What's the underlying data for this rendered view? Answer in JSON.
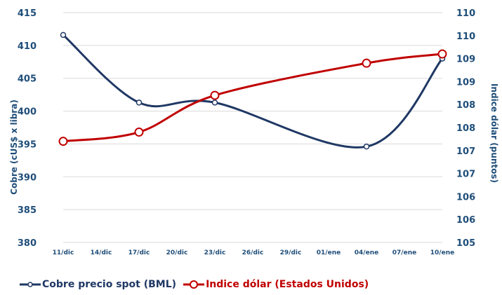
{
  "colors": {
    "cobre": "#1f3864",
    "dolar": "#c00000",
    "axis_text": "#1f4e79",
    "grid": "#d9d9d9"
  },
  "chart_data": {
    "type": "line",
    "x": [
      "11/dic",
      "17/dic",
      "23/dic",
      "04/ene",
      "10/ene"
    ],
    "xticks": [
      "11/dic",
      "14/dic",
      "17/dic",
      "20/dic",
      "23/dic",
      "26/dic",
      "29/dic",
      "01/ene",
      "04/ene",
      "07/ene",
      "10/ene"
    ],
    "ylabel": "Cobre (cUS$ x libra)",
    "y2label": "Indice dólar (puntos)",
    "ylim": [
      380,
      415
    ],
    "yticks": [
      "380",
      "385",
      "390",
      "395",
      "400",
      "405",
      "410",
      "415"
    ],
    "y2ticks": [
      "105",
      "106",
      "106",
      "107",
      "107",
      "108",
      "108",
      "109",
      "109",
      "110",
      "110"
    ],
    "y2lim": [
      105,
      110
    ],
    "grid": true,
    "legend_position": "bottom",
    "series": [
      {
        "name": "Cobre precio spot (BML)",
        "axis": "left",
        "values": [
          411.6,
          401.3,
          401.3,
          394.6,
          408.0
        ]
      },
      {
        "name": "Indice dólar (Estados Unidos)",
        "axis": "right",
        "values": [
          107.2,
          107.4,
          108.2,
          108.9,
          109.1
        ]
      }
    ]
  }
}
